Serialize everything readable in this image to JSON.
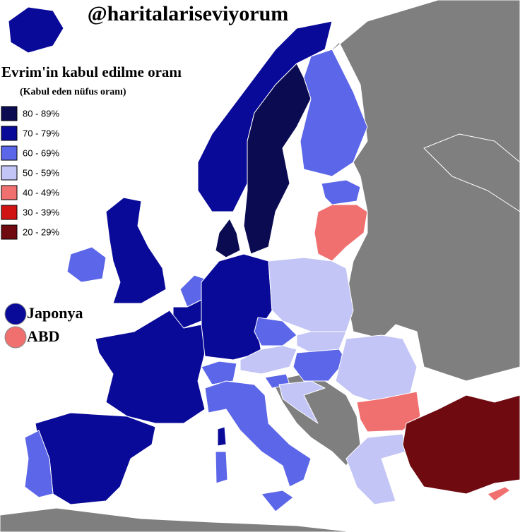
{
  "title": "@haritalariseviyorum",
  "legend": {
    "title": "Evrim'in kabul edilme oranı",
    "subtitle": "(Kabul eden nüfus oranı)",
    "items": [
      {
        "label": "80 - 89%",
        "color": "#0b0b52"
      },
      {
        "label": "70 - 79%",
        "color": "#0a0a99"
      },
      {
        "label": "60 - 69%",
        "color": "#5c66e8"
      },
      {
        "label": "50 - 59%",
        "color": "#c2c5f5"
      },
      {
        "label": "40 - 49%",
        "color": "#f07070"
      },
      {
        "label": "30 - 39%",
        "color": "#d01414"
      },
      {
        "label": "20 - 29%",
        "color": "#6e0a10"
      }
    ]
  },
  "markers": [
    {
      "label": "Japonya",
      "color": "#0a0a99"
    },
    {
      "label": "ABD",
      "color": "#f07070"
    }
  ]
}
